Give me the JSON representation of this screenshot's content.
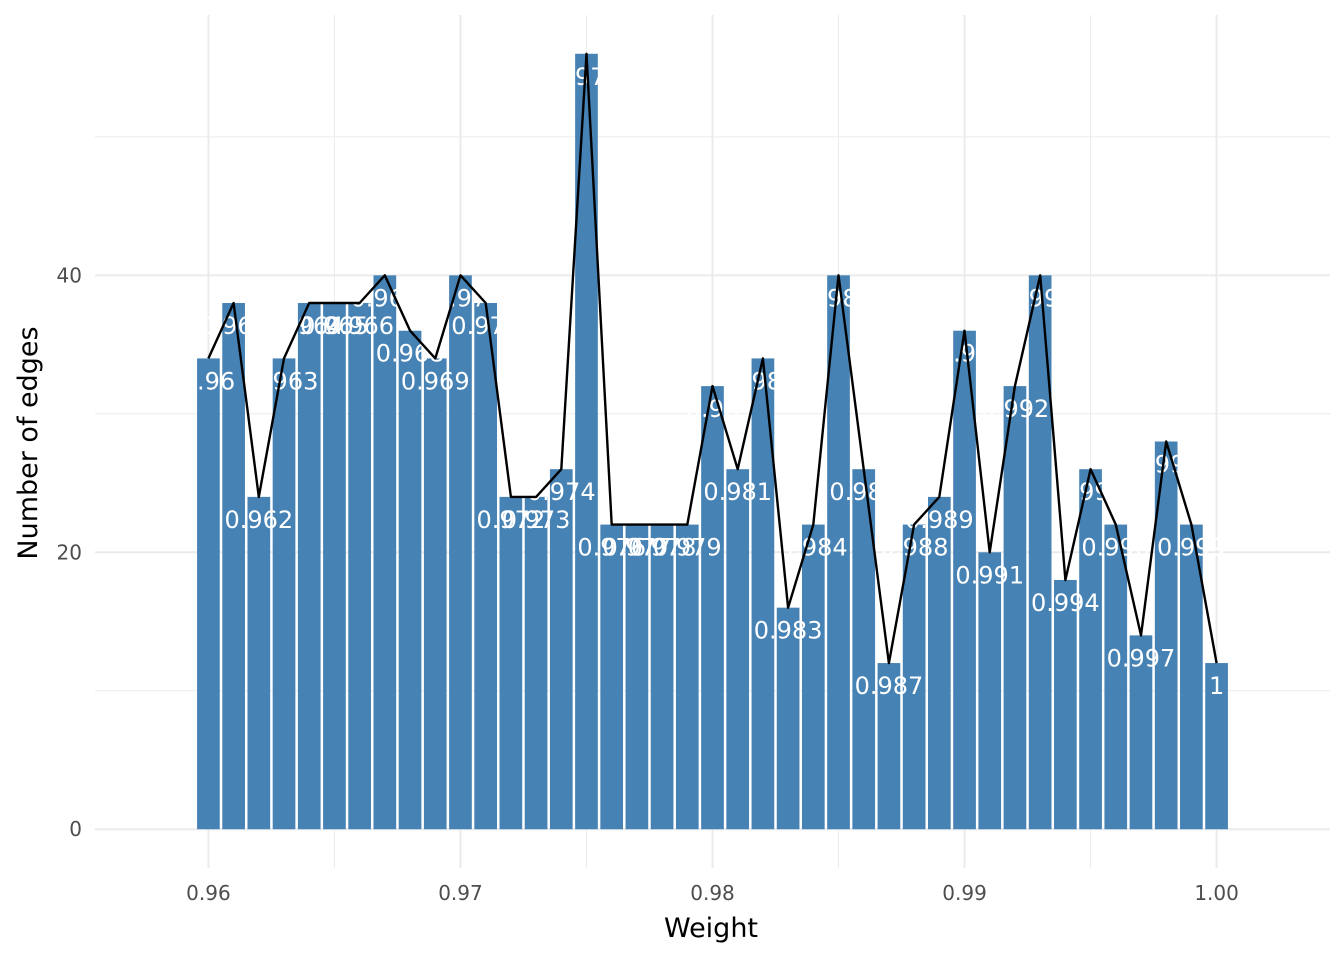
{
  "chart_data": {
    "type": "bar",
    "x": [
      0.96,
      0.961,
      0.962,
      0.963,
      0.964,
      0.965,
      0.966,
      0.967,
      0.968,
      0.969,
      0.97,
      0.971,
      0.972,
      0.973,
      0.974,
      0.975,
      0.976,
      0.977,
      0.978,
      0.979,
      0.98,
      0.981,
      0.982,
      0.983,
      0.984,
      0.985,
      0.986,
      0.987,
      0.988,
      0.989,
      0.99,
      0.991,
      0.992,
      0.993,
      0.994,
      0.995,
      0.996,
      0.997,
      0.998,
      0.999,
      1
    ],
    "values": [
      34,
      38,
      24,
      34,
      38,
      38,
      38,
      40,
      36,
      34,
      40,
      38,
      24,
      24,
      26,
      56,
      22,
      22,
      22,
      22,
      32,
      26,
      34,
      16,
      22,
      40,
      26,
      12,
      22,
      24,
      36,
      20,
      32,
      40,
      18,
      26,
      22,
      14,
      28,
      22,
      12
    ],
    "labels": [
      "0.96",
      "0.961",
      "0.962",
      "0.963",
      "0.964",
      "0.965",
      "0.966",
      "0.967",
      "0.968",
      "0.969",
      "0.97",
      "0.971",
      "0.972",
      "0.973",
      "0.974",
      "0.975",
      "0.976",
      "0.977",
      "0.978",
      "0.979",
      "0.98",
      "0.981",
      "0.982",
      "0.983",
      "0.984",
      "0.985",
      "0.986",
      "0.987",
      "0.988",
      "0.989",
      "0.99",
      "0.991",
      "0.992",
      "0.993",
      "0.994",
      "0.995",
      "0.996",
      "0.997",
      "0.998",
      "0.999",
      "1"
    ],
    "line_overlay": true,
    "xlabel": "Weight",
    "ylabel": "Number of edges",
    "xlim": [
      0.9555,
      1.0045
    ],
    "ylim": [
      -2.8,
      58.8
    ],
    "x_ticks": [
      "0.96",
      "0.97",
      "0.98",
      "0.99",
      "1.00"
    ],
    "y_ticks": [
      "0",
      "20",
      "40"
    ],
    "grid": true,
    "legend": "none",
    "colors": {
      "bar": "#4682b4",
      "line": "#000000",
      "grid": "#ebebeb",
      "label": "#ffffff"
    }
  }
}
